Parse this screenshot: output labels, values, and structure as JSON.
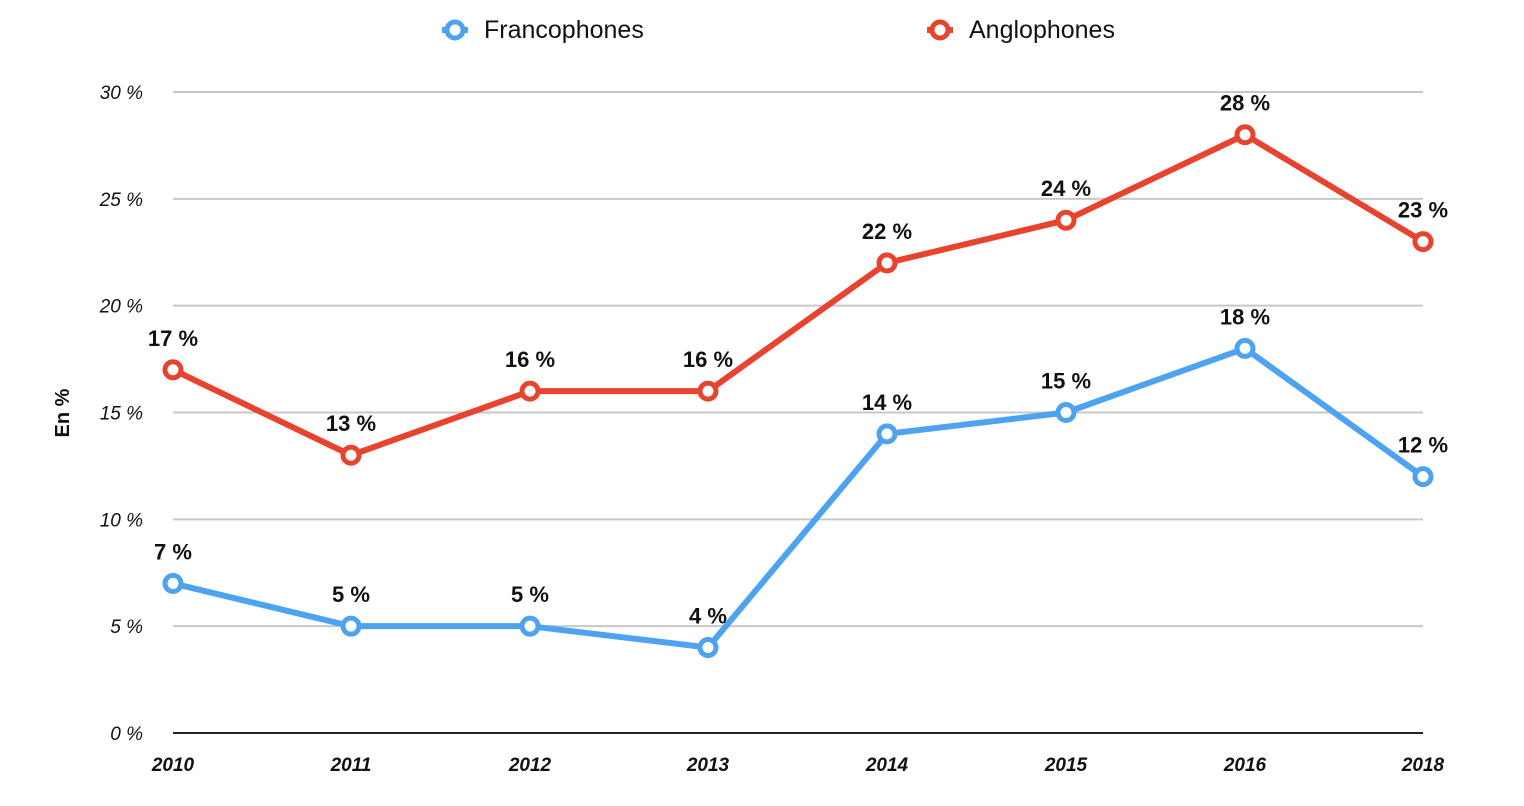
{
  "chart_data": {
    "type": "line",
    "title": "",
    "xlabel": "",
    "ylabel": "En %",
    "categories": [
      "2010",
      "2011",
      "2012",
      "2013",
      "2014",
      "2015",
      "2016",
      "2018"
    ],
    "ylim": [
      0,
      30
    ],
    "yticks": [
      0,
      5,
      10,
      15,
      20,
      25,
      30
    ],
    "ytick_labels": [
      "0 %",
      "5 %",
      "10 %",
      "15 %",
      "20 %",
      "25 %",
      "30 %"
    ],
    "grid": true,
    "legend_position": "top-center",
    "series": [
      {
        "name": "Francophones",
        "color": "#4da3f0",
        "values": [
          7,
          5,
          5,
          4,
          14,
          15,
          18,
          12
        ],
        "labels": [
          "7 %",
          "5 %",
          "5 %",
          "4 %",
          "14 %",
          "15 %",
          "18 %",
          "12 %"
        ]
      },
      {
        "name": "Anglophones",
        "color": "#e8432e",
        "values": [
          17,
          13,
          16,
          16,
          22,
          24,
          28,
          23
        ],
        "labels": [
          "17 %",
          "13 %",
          "16 %",
          "16 %",
          "22 %",
          "24 %",
          "28 %",
          "23 %"
        ]
      }
    ]
  }
}
